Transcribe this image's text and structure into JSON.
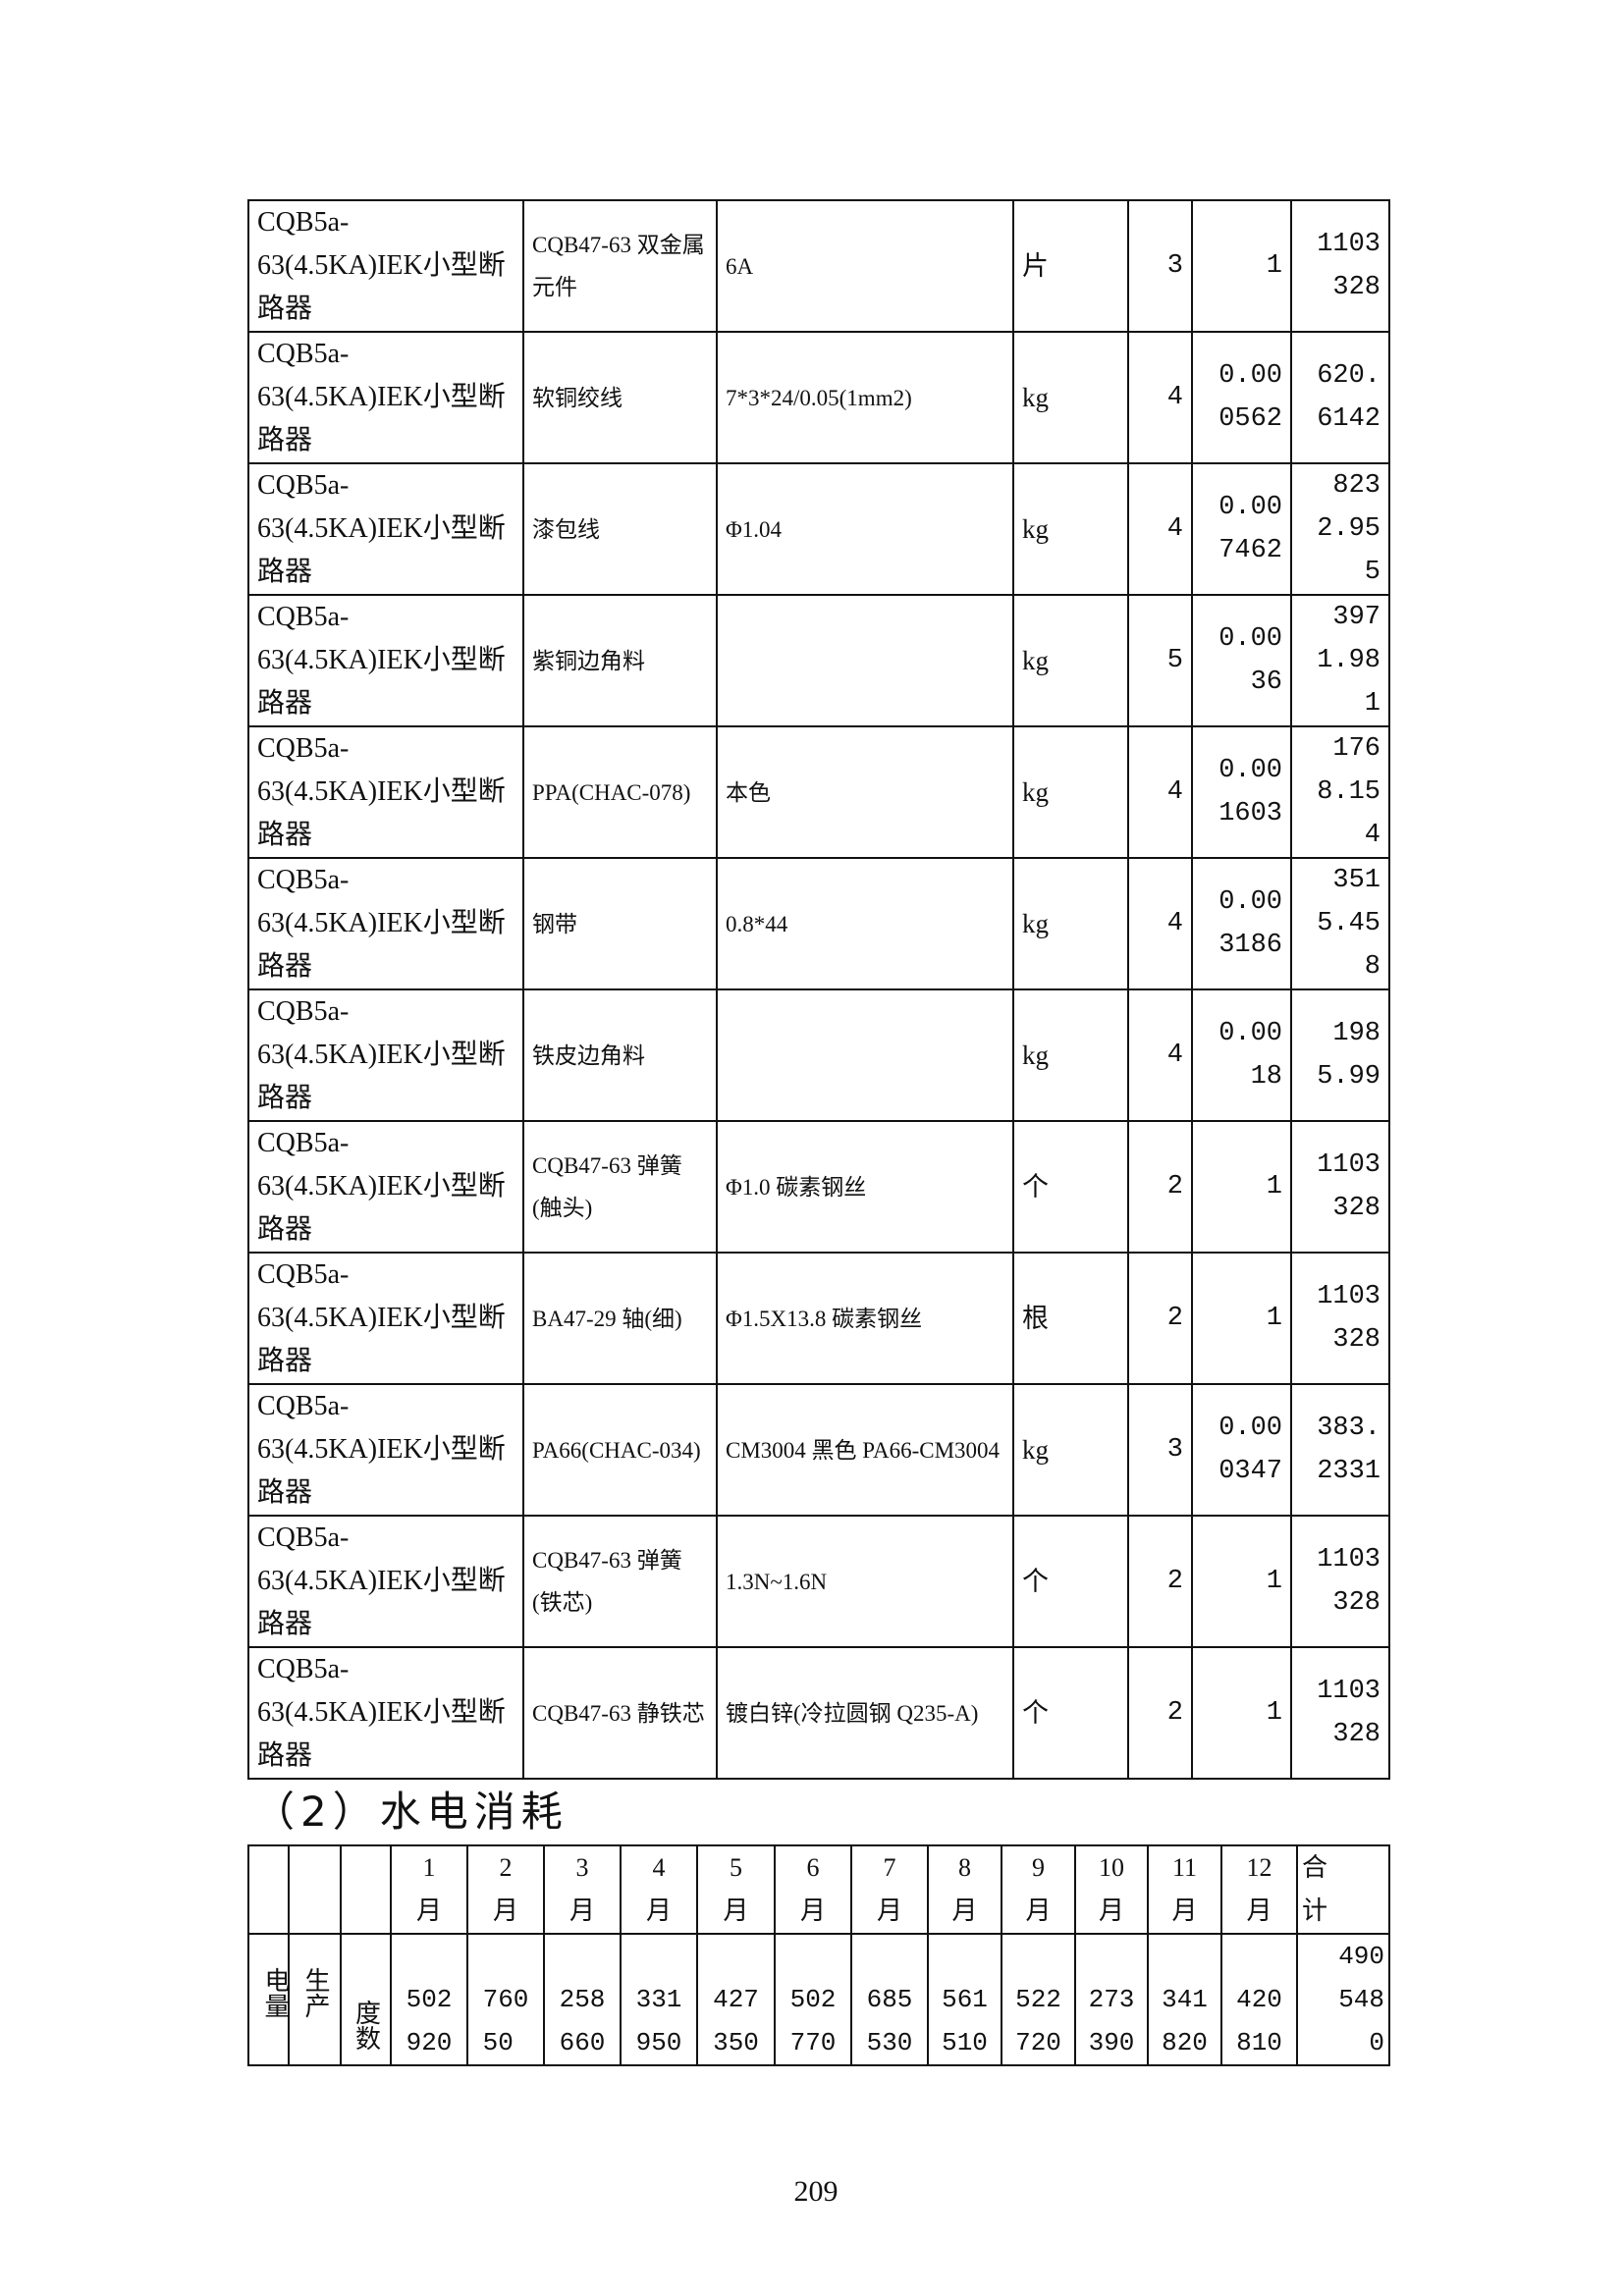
{
  "materials_table": {
    "rows": [
      {
        "product": "CQB5a-63(4.5KA)IEK小型断路器",
        "material": "CQB47-63 双金属元件",
        "spec": "6A",
        "unit": "片",
        "grade": "3",
        "unit_consumption": "1",
        "quantity": "1103328"
      },
      {
        "product": "CQB5a-63(4.5KA)IEK小型断路器",
        "material": "软铜绞线",
        "spec": "7*3*24/0.05(1mm2)",
        "unit": "kg",
        "grade": "4",
        "unit_consumption": "0.000562",
        "quantity": "620.6142"
      },
      {
        "product": "CQB5a-63(4.5KA)IEK小型断路器",
        "material": "漆包线",
        "spec": "Φ1.04",
        "unit": "kg",
        "grade": "4",
        "unit_consumption": "0.007462",
        "quantity": "8232.955"
      },
      {
        "product": "CQB5a-63(4.5KA)IEK小型断路器",
        "material": "紫铜边角料",
        "spec": "",
        "unit": "kg",
        "grade": "5",
        "unit_consumption": "0.0036",
        "quantity": "3971.981"
      },
      {
        "product": "CQB5a-63(4.5KA)IEK小型断路器",
        "material": "PPA(CHAC-078)",
        "spec": "本色",
        "unit": "kg",
        "grade": "4",
        "unit_consumption": "0.001603",
        "quantity": "1768.154"
      },
      {
        "product": "CQB5a-63(4.5KA)IEK小型断路器",
        "material": "钢带",
        "spec": "0.8*44",
        "unit": "kg",
        "grade": "4",
        "unit_consumption": "0.003186",
        "quantity": "3515.458"
      },
      {
        "product": "CQB5a-63(4.5KA)IEK小型断路器",
        "material": "铁皮边角料",
        "spec": "",
        "unit": "kg",
        "grade": "4",
        "unit_consumption": "0.0018",
        "quantity": "1985.99"
      },
      {
        "product": "CQB5a-63(4.5KA)IEK小型断路器",
        "material": "CQB47-63 弹簧(触头)",
        "spec": "Φ1.0 碳素钢丝",
        "unit": "个",
        "grade": "2",
        "unit_consumption": "1",
        "quantity": "1103328"
      },
      {
        "product": "CQB5a-63(4.5KA)IEK小型断路器",
        "material": "BA47-29 轴(细)",
        "spec": "Φ1.5X13.8 碳素钢丝",
        "unit": "根",
        "grade": "2",
        "unit_consumption": "1",
        "quantity": "1103328"
      },
      {
        "product": "CQB5a-63(4.5KA)IEK小型断路器",
        "material": "PA66(CHAC-034)",
        "spec": "CM3004 黑色 PA66-CM3004",
        "unit": "kg",
        "grade": "3",
        "unit_consumption": "0.000347",
        "quantity": "383.2331"
      },
      {
        "product": "CQB5a-63(4.5KA)IEK小型断路器",
        "material": "CQB47-63 弹簧(铁芯)",
        "spec": "1.3N~1.6N",
        "unit": "个",
        "grade": "2",
        "unit_consumption": "1",
        "quantity": "1103328"
      },
      {
        "product": "CQB5a-63(4.5KA)IEK小型断路器",
        "material": "CQB47-63 静铁芯",
        "spec": "镀白锌(冷拉圆钢 Q235-A)",
        "unit": "个",
        "grade": "2",
        "unit_consumption": "1",
        "quantity": "1103328"
      }
    ]
  },
  "section_heading": "（2）水电消耗",
  "power_table": {
    "months": [
      "1月",
      "2月",
      "3月",
      "4月",
      "5月",
      "6月",
      "7月",
      "8月",
      "9月",
      "10月",
      "11月",
      "12月"
    ],
    "total_label": "合计",
    "row": {
      "category": "电量",
      "type": "生产",
      "unit": "度数",
      "values": [
        "502920",
        "76050",
        "258660",
        "331950",
        "427350",
        "502770",
        "685530",
        "561510",
        "522720",
        "273390",
        "341820",
        "420810"
      ],
      "total": "4905480"
    }
  },
  "page_number": "209"
}
